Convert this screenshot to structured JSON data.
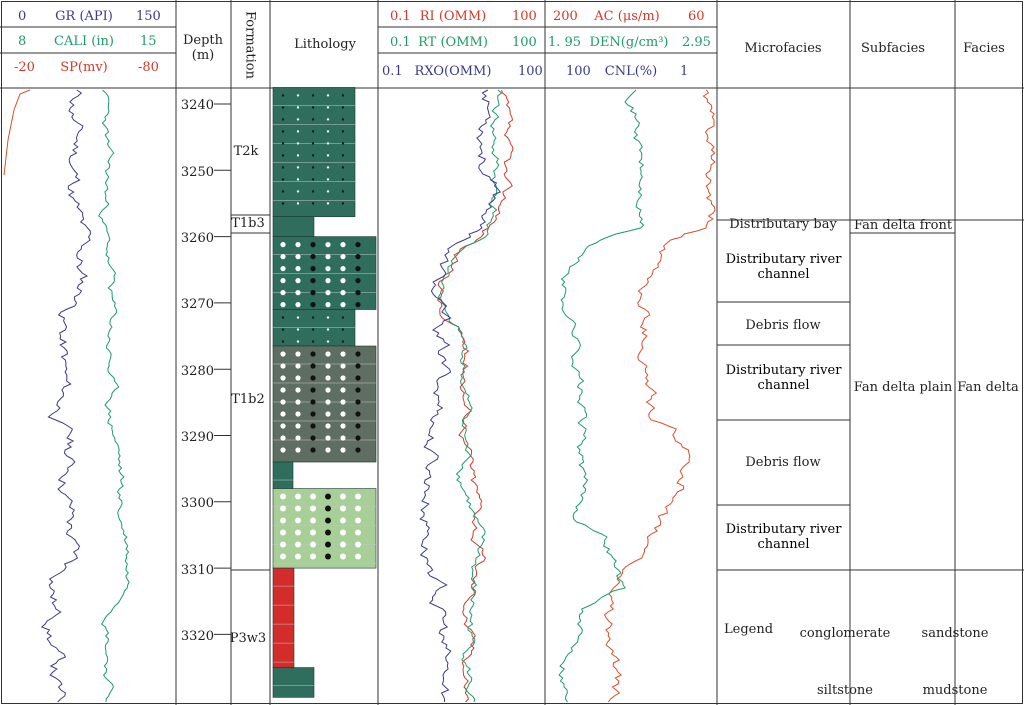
{
  "colors": {
    "gr": "#3a3a8c",
    "cali": "#1f9a6a",
    "sp": "#d8502a",
    "ri": "#d23a2a",
    "rt": "#1f9a6a",
    "rxo": "#3a3a8c",
    "ac": "#d8502a",
    "den": "#1f9a6a",
    "cnl": "#3a3a8c",
    "sand": "#2f6e5c",
    "conglomerate": "#2f6e5c",
    "darkcong": "#5e6e62",
    "lightcong": "#a8cf98",
    "red": "#d42b2b"
  },
  "header": {
    "track1": [
      {
        "min": "0",
        "name": "GR (API)",
        "max": "150"
      },
      {
        "min": "8",
        "name": "CALI (in)",
        "max": "15"
      },
      {
        "min": "-20",
        "name": "SP(mv)",
        "max": "-80"
      }
    ],
    "depth": "Depth\n(m)",
    "depth_line1": "Depth",
    "depth_line2": "(m)",
    "formation": "Formation",
    "lithology": "Lithology",
    "track2": [
      {
        "min": "0.1",
        "name": "RI (OMM)",
        "max": "100"
      },
      {
        "min": "0.1",
        "name": "RT (OMM)",
        "max": "100"
      },
      {
        "min": "0.1",
        "name": "RXO(OMM)",
        "max": "100"
      }
    ],
    "track3": [
      {
        "min": "200",
        "name": "AC (μs/m)",
        "max": "60"
      },
      {
        "min": "1. 95",
        "name": "DEN(g/cm³)",
        "max": "2.95"
      },
      {
        "min": "100",
        "name": "CNL(%)",
        "max": "1"
      }
    ],
    "microfacies": "Microfacies",
    "subfacies": "Subfacies",
    "facies": "Facies"
  },
  "depth_ticks": [
    "3240",
    "3250",
    "3260",
    "3270",
    "3280",
    "3290",
    "3300",
    "3310",
    "3320"
  ],
  "formations": [
    "T2k",
    "T1b3",
    "T1b2",
    "P3w3"
  ],
  "microfacies": [
    "Distributary bay",
    "Distributary river channel",
    "Debris flow",
    "Distributary river channel",
    "Debris flow",
    "Distributary river channel"
  ],
  "subfacies": [
    "Fan delta front",
    "Fan delta plain"
  ],
  "facies": [
    "Fan delta"
  ],
  "legend": {
    "title": "Legend",
    "items": [
      "conglomerate",
      "sandstone",
      "siltstone",
      "mudstone"
    ]
  }
}
